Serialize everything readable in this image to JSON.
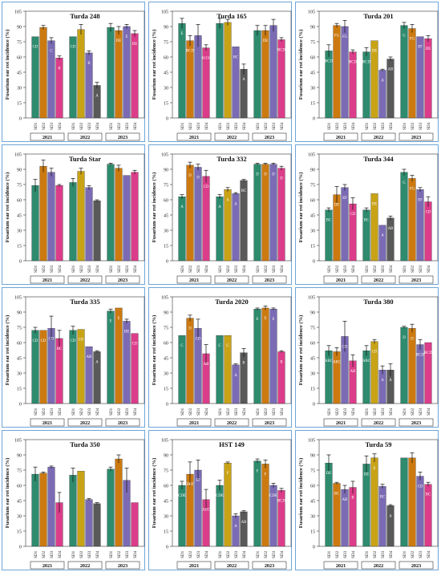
{
  "figure": {
    "ylabel": "Fusarium ear rot incidence (%)",
    "yticks": [
      0,
      15,
      30,
      45,
      60,
      75,
      90,
      105
    ],
    "ylim": [
      0,
      105
    ],
    "bar_labels": [
      "SD1",
      "SD2",
      "SD3",
      "SD4"
    ],
    "years": [
      "2021",
      "2022",
      "2023"
    ],
    "colors": {
      "SD1": "#2e8b6e",
      "SD2": "#cc7a10",
      "SD3": "#7b6bb5",
      "SD4": "#dc3d8a",
      "SD2_2022": "#c9a316",
      "SD4_2022": "#595959",
      "SD3_2022": "#b5652a"
    }
  },
  "chart_data": [
    {
      "type": "bar",
      "title": "Turda 248",
      "values": [
        [
          80,
          89,
          76,
          59
        ],
        [
          80,
          87,
          64,
          32
        ],
        [
          89,
          86,
          90,
          83
        ]
      ],
      "errors": [
        [
          0,
          2,
          3,
          2
        ],
        [
          0,
          5,
          2,
          3
        ],
        [
          4,
          4,
          2,
          3
        ]
      ],
      "letters": [
        [
          "CD",
          "",
          "C",
          "B"
        ],
        [
          "CD",
          "",
          "B",
          "A"
        ],
        [
          "",
          "DE",
          "E",
          "DE"
        ]
      ]
    },
    {
      "type": "bar",
      "title": "Turda 165",
      "values": [
        [
          93,
          76,
          81,
          69
        ],
        [
          93,
          94,
          70,
          48
        ],
        [
          86,
          86,
          91,
          77
        ]
      ],
      "errors": [
        [
          5,
          5,
          11,
          3
        ],
        [
          5,
          3,
          0,
          5
        ],
        [
          5,
          5,
          6,
          2
        ]
      ],
      "letters": [
        [
          "E",
          "BCD",
          "",
          "BCDE"
        ],
        [
          "",
          "",
          "BC",
          "A"
        ],
        [
          "",
          "DE",
          "",
          "BCD"
        ]
      ]
    },
    {
      "type": "bar",
      "title": "Turda 201",
      "values": [
        [
          66,
          91,
          90,
          65
        ],
        [
          65,
          76,
          47,
          58
        ],
        [
          91,
          88,
          80,
          78
        ]
      ],
      "errors": [
        [
          6,
          2,
          6,
          2
        ],
        [
          4,
          0,
          1,
          2
        ],
        [
          3,
          4,
          0,
          3
        ]
      ],
      "letters": [
        [
          "BCD",
          "FG",
          "FG",
          "BCD"
        ],
        [
          "BCD",
          "DE",
          "A",
          "AB"
        ],
        [
          "G",
          "FG",
          "EF",
          "DE"
        ]
      ]
    },
    {
      "type": "bar",
      "title": "Turda Star",
      "values": [
        [
          74,
          93,
          87,
          74
        ],
        [
          77,
          88,
          72,
          59
        ],
        [
          95,
          91,
          84,
          87
        ]
      ],
      "errors": [
        [
          6,
          6,
          4,
          1
        ],
        [
          4,
          3,
          2,
          1
        ],
        [
          1,
          3,
          0,
          2
        ]
      ],
      "letters": [
        [
          "",
          "",
          "",
          ""
        ],
        [
          "",
          "",
          "",
          ""
        ],
        [
          "",
          "",
          "",
          ""
        ]
      ]
    },
    {
      "type": "bar",
      "title": "Turda 332",
      "values": [
        [
          63,
          94,
          92,
          83
        ],
        [
          63,
          70,
          66,
          79
        ],
        [
          95,
          95,
          95,
          91
        ]
      ],
      "errors": [
        [
          2,
          3,
          3,
          6
        ],
        [
          2,
          2,
          1,
          1
        ],
        [
          1,
          1,
          1,
          2
        ]
      ],
      "letters": [
        [
          "A",
          "D",
          "D",
          "CD"
        ],
        [
          "A",
          "A",
          "A",
          "BC"
        ],
        [
          "D",
          "D",
          "D",
          "D"
        ]
      ]
    },
    {
      "type": "bar",
      "title": "Turda 344",
      "values": [
        [
          50,
          65,
          72,
          56
        ],
        [
          50,
          66,
          35,
          42
        ],
        [
          87,
          81,
          70,
          58
        ]
      ],
      "errors": [
        [
          2,
          8,
          3,
          6
        ],
        [
          2,
          0,
          0,
          2
        ],
        [
          3,
          3,
          2,
          5
        ]
      ],
      "letters": [
        [
          "BC",
          "DE",
          "EF",
          "CD"
        ],
        [
          "BC",
          "DE",
          "A",
          "AB"
        ],
        [
          "G",
          "FG",
          "EF",
          "CD"
        ]
      ]
    },
    {
      "type": "bar",
      "title": "Turda 335",
      "values": [
        [
          72,
          72,
          74,
          64
        ],
        [
          72,
          73,
          56,
          51
        ],
        [
          91,
          94,
          81,
          69
        ]
      ],
      "errors": [
        [
          3,
          0,
          12,
          8
        ],
        [
          4,
          0,
          0,
          1
        ],
        [
          2,
          0,
          2,
          0
        ]
      ],
      "letters": [
        [
          "CD",
          "CD",
          "CD",
          "BC"
        ],
        [
          "CD",
          "CD",
          "AB",
          "A"
        ],
        [
          "E",
          "E",
          "DE",
          "CD"
        ]
      ]
    },
    {
      "type": "bar",
      "title": "Turda 2020",
      "values": [
        [
          67,
          84,
          74,
          49
        ],
        [
          67,
          67,
          38,
          50
        ],
        [
          93,
          94,
          93,
          51
        ]
      ],
      "errors": [
        [
          0,
          3,
          9,
          9
        ],
        [
          0,
          0,
          1,
          4
        ],
        [
          1,
          2,
          1,
          1
        ]
      ],
      "letters": [
        [
          "C",
          "D",
          "CD",
          "AB"
        ],
        [
          "C",
          "C",
          "A",
          "B"
        ],
        [
          "E",
          "E",
          "E",
          "B"
        ]
      ]
    },
    {
      "type": "bar",
      "title": "Turda 380",
      "values": [
        [
          52,
          51,
          66,
          42
        ],
        [
          52,
          61,
          33,
          33
        ],
        [
          75,
          74,
          58,
          60
        ]
      ],
      "errors": [
        [
          5,
          4,
          15,
          6
        ],
        [
          5,
          2,
          4,
          6
        ],
        [
          1,
          4,
          5,
          0
        ]
      ],
      "letters": [
        [
          "ABC",
          "ABC",
          "CD",
          "AB"
        ],
        [
          "ABC",
          "CD",
          "A",
          "A"
        ],
        [
          "D",
          "D",
          "BCD",
          "BCD"
        ]
      ]
    },
    {
      "type": "bar",
      "title": "Turda 350",
      "values": [
        [
          71,
          72,
          78,
          43
        ],
        [
          70,
          74,
          46,
          42
        ],
        [
          76,
          86,
          65,
          43
        ]
      ],
      "errors": [
        [
          7,
          1,
          1,
          10
        ],
        [
          7,
          0,
          1,
          1
        ],
        [
          2,
          4,
          12,
          0
        ]
      ],
      "letters": [
        [
          "",
          "",
          "",
          ""
        ],
        [
          "",
          "",
          "",
          ""
        ],
        [
          "",
          "",
          "",
          ""
        ]
      ]
    },
    {
      "type": "bar",
      "title": "HST 149",
      "values": [
        [
          60,
          71,
          75,
          46
        ],
        [
          60,
          82,
          30,
          34
        ],
        [
          84,
          81,
          60,
          55
        ]
      ],
      "errors": [
        [
          4,
          12,
          10,
          10
        ],
        [
          5,
          1,
          2,
          1
        ],
        [
          2,
          4,
          2,
          2
        ]
      ],
      "letters": [
        [
          "CDE",
          "DEF",
          "EF",
          "ABC"
        ],
        [
          "CDE",
          "F",
          "A",
          "AB"
        ],
        [
          "F",
          "F",
          "CDE",
          "BCD"
        ]
      ]
    },
    {
      "type": "bar",
      "title": "Turda 59",
      "values": [
        [
          82,
          62,
          56,
          58
        ],
        [
          81,
          87,
          59,
          40
        ],
        [
          87,
          87,
          69,
          61
        ]
      ],
      "errors": [
        [
          8,
          1,
          4,
          6
        ],
        [
          8,
          4,
          2,
          1
        ],
        [
          0,
          5,
          4,
          2
        ]
      ],
      "letters": [
        [
          "DE",
          "BC",
          "AB",
          "B"
        ],
        [
          "DE",
          "E",
          "BC",
          "A"
        ],
        [
          "",
          "",
          "CD",
          "BC"
        ]
      ]
    }
  ]
}
